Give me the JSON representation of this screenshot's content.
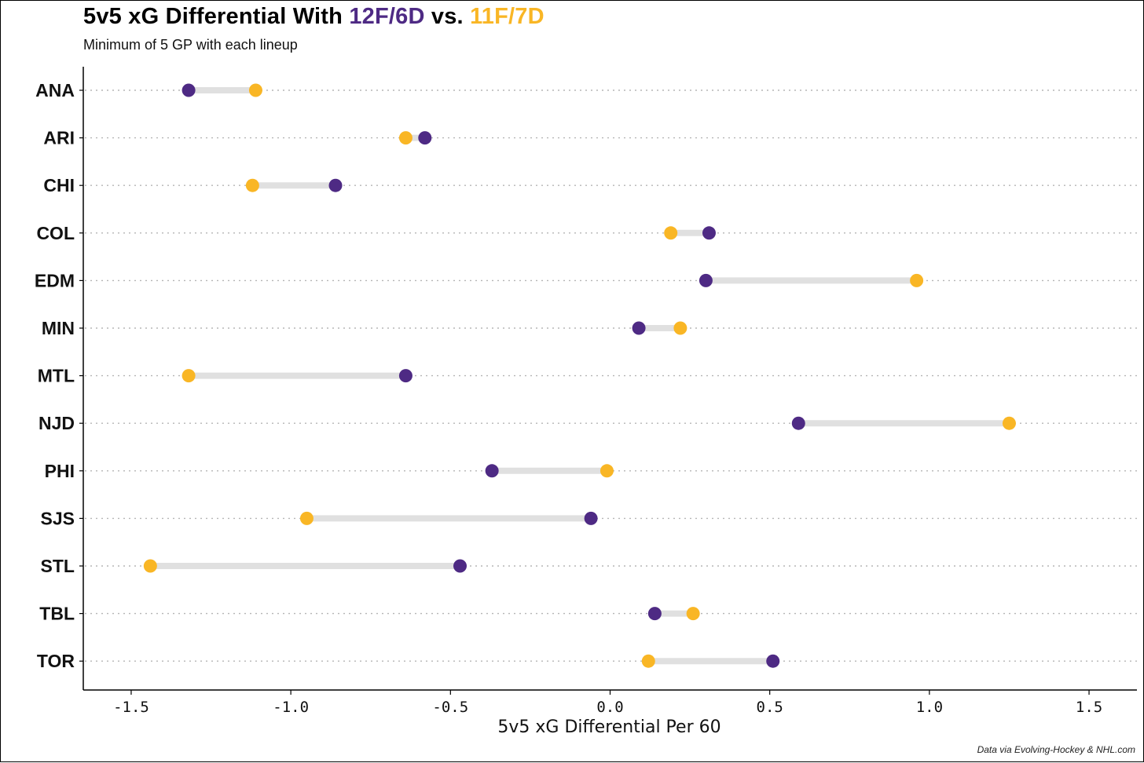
{
  "title": {
    "prefix": "5v5 xG Differential With ",
    "series1": "12F/6D",
    "middle": " vs. ",
    "series2": "11F/7D"
  },
  "subtitle": "Minimum of 5 GP with each lineup",
  "caption": "Data via Evolving-Hockey & NHL.com",
  "colors": {
    "series1": "#4e2a84",
    "series2": "#f9b625",
    "connector": "#e0e0e0",
    "gridline": "#b5b5b5"
  },
  "chart_data": {
    "type": "scatter",
    "subtype": "dumbbell",
    "xlabel": "5v5 xG Differential Per 60",
    "xlim": [
      -1.65,
      1.65
    ],
    "xticks": [
      -1.5,
      -1.0,
      -0.5,
      0.0,
      0.5,
      1.0,
      1.5
    ],
    "xtick_labels": [
      "-1.5",
      "-1.0",
      "-0.5",
      "0.0",
      "0.5",
      "1.0",
      "1.5"
    ],
    "grid": "horizontal dotted",
    "categories": [
      "ANA",
      "ARI",
      "CHI",
      "COL",
      "EDM",
      "MIN",
      "MTL",
      "NJD",
      "PHI",
      "SJS",
      "STL",
      "TBL",
      "TOR"
    ],
    "series": [
      {
        "name": "12F/6D",
        "values": [
          -1.32,
          -0.58,
          -0.86,
          0.31,
          0.3,
          0.09,
          -0.64,
          0.59,
          -0.37,
          -0.06,
          -0.47,
          0.14,
          0.51
        ]
      },
      {
        "name": "11F/7D",
        "values": [
          -1.11,
          -0.64,
          -1.12,
          0.19,
          0.96,
          0.22,
          -1.32,
          1.25,
          -0.01,
          -0.95,
          -1.44,
          0.26,
          0.12
        ]
      }
    ]
  }
}
